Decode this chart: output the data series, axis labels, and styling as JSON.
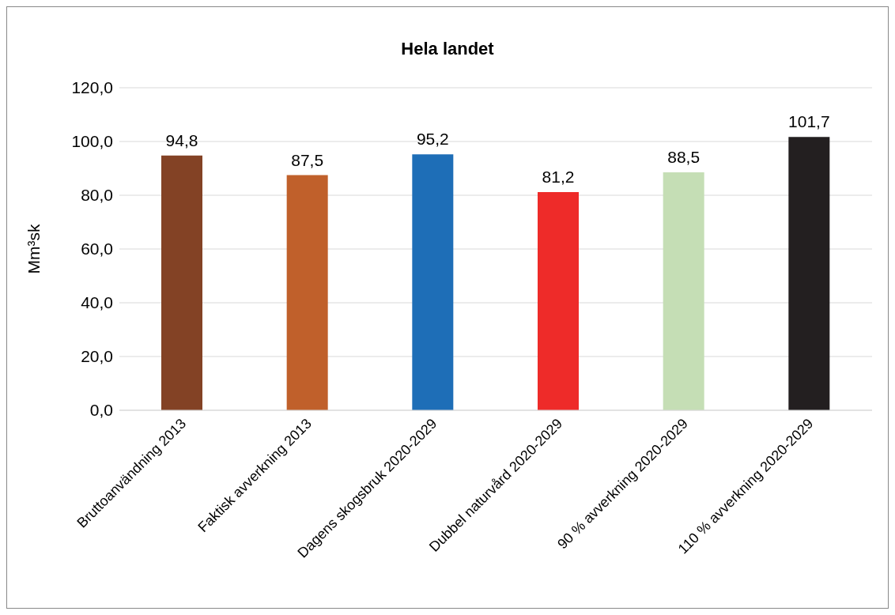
{
  "chart_data": {
    "type": "bar",
    "title": "Hela landet",
    "ylabel": "Mm³sk",
    "categories": [
      "Bruttoanvändning 2013",
      "Faktisk avverkning 2013",
      "Dagens skogsbruk 2020-2029",
      "Dubbel naturvård 2020-2029",
      "90 % avverkning 2020-2029",
      "110 % avverkning 2020-2029"
    ],
    "values": [
      94.8,
      87.5,
      95.2,
      81.2,
      88.5,
      101.7
    ],
    "colors": [
      "#834225",
      "#c0602b",
      "#1e6eb7",
      "#ee2b29",
      "#c5deb5",
      "#231f20"
    ],
    "value_labels": [
      "94,8",
      "87,5",
      "95,2",
      "81,2",
      "88,5",
      "101,7"
    ],
    "ylim": [
      0,
      120
    ],
    "yticks": [
      {
        "value": 0,
        "label": "0,0"
      },
      {
        "value": 20,
        "label": "20,0"
      },
      {
        "value": 40,
        "label": "40,0"
      },
      {
        "value": 60,
        "label": "60,0"
      },
      {
        "value": 80,
        "label": "80,0"
      },
      {
        "value": 100,
        "label": "100,0"
      },
      {
        "value": 120,
        "label": "120,0"
      }
    ],
    "grid": "y"
  }
}
